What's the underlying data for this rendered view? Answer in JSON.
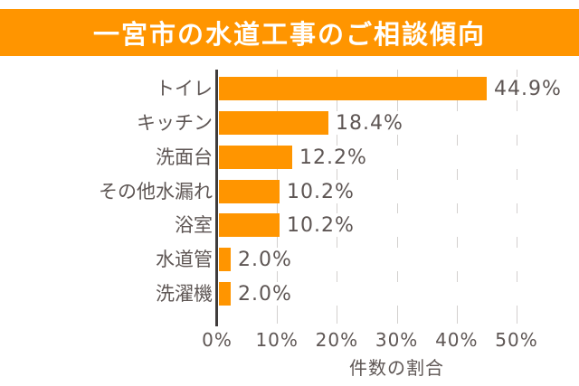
{
  "banner": {
    "title": "一宮市の水道工事のご相談傾向"
  },
  "chart_data": {
    "type": "bar",
    "orientation": "horizontal",
    "title": "一宮市の水道工事のご相談傾向",
    "categories": [
      "トイレ",
      "キッチン",
      "洗面台",
      "その他水漏れ",
      "浴室",
      "水道管",
      "洗濯機"
    ],
    "values": [
      44.9,
      18.4,
      12.2,
      10.2,
      10.2,
      2.0,
      2.0
    ],
    "value_labels": [
      "44.9%",
      "18.4%",
      "12.2%",
      "10.2%",
      "10.2%",
      "2.0%",
      "2.0%"
    ],
    "xlabel": "件数の割合",
    "ylabel": "",
    "x_ticks": [
      "0%",
      "10%",
      "20%",
      "30%",
      "40%",
      "50%"
    ],
    "x_tick_values": [
      0,
      10,
      20,
      30,
      40,
      50
    ],
    "xlim": [
      0,
      50
    ],
    "grid": true,
    "legend": false,
    "bar_color": "#ff9500",
    "data_label_position": "outside-end"
  },
  "colors": {
    "accent_orange": "#ff9500",
    "banner_text": "#ffffff",
    "label_text": "#5e5654",
    "gridline": "#d3d0ce",
    "axis_line": "#403c3b",
    "background": "#ffffff"
  }
}
